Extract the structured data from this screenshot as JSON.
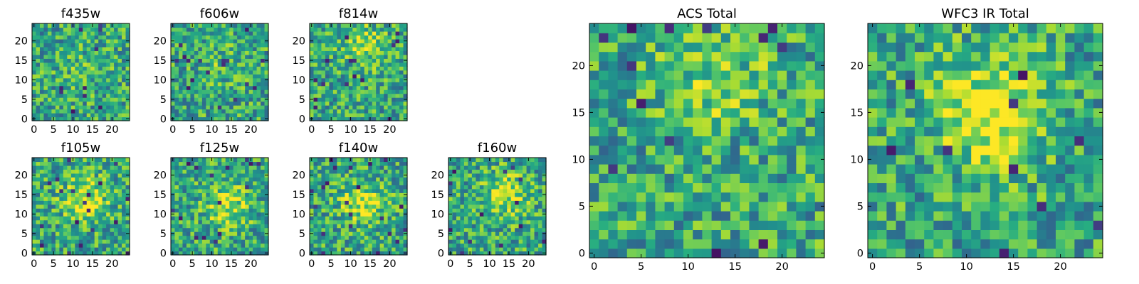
{
  "chart_data": [
    {
      "type": "heatmap",
      "title": "f435w",
      "colormap": "viridis",
      "grid_size": 25,
      "seed": 11,
      "blob": [
        13,
        13,
        0.1
      ],
      "xticks": [
        0,
        5,
        10,
        15,
        20
      ],
      "yticks": [
        0,
        5,
        10,
        15,
        20
      ],
      "xlim": [
        0,
        25
      ],
      "ylim": [
        0,
        25
      ]
    },
    {
      "type": "heatmap",
      "title": "f606w",
      "colormap": "viridis",
      "grid_size": 25,
      "seed": 23,
      "blob": [
        13,
        14,
        0.1
      ],
      "xticks": [
        0,
        5,
        10,
        15,
        20
      ],
      "yticks": [
        0,
        5,
        10,
        15,
        20
      ],
      "xlim": [
        0,
        25
      ],
      "ylim": [
        0,
        25
      ]
    },
    {
      "type": "heatmap",
      "title": "f814w",
      "colormap": "viridis",
      "grid_size": 25,
      "seed": 37,
      "blob": [
        13,
        19,
        0.25
      ],
      "xticks": [
        0,
        5,
        10,
        15,
        20
      ],
      "yticks": [
        0,
        5,
        10,
        15,
        20
      ],
      "xlim": [
        0,
        25
      ],
      "ylim": [
        0,
        25
      ]
    },
    {
      "type": "heatmap",
      "title": "f105w",
      "colormap": "viridis",
      "grid_size": 25,
      "seed": 41,
      "blob": [
        13,
        14,
        0.35
      ],
      "xticks": [
        0,
        5,
        10,
        15,
        20
      ],
      "yticks": [
        0,
        5,
        10,
        15,
        20
      ],
      "xlim": [
        0,
        25
      ],
      "ylim": [
        0,
        25
      ]
    },
    {
      "type": "heatmap",
      "title": "f125w",
      "colormap": "viridis",
      "grid_size": 25,
      "seed": 53,
      "blob": [
        14,
        12,
        0.3
      ],
      "xticks": [
        0,
        5,
        10,
        15,
        20
      ],
      "yticks": [
        0,
        5,
        10,
        15,
        20
      ],
      "xlim": [
        0,
        25
      ],
      "ylim": [
        0,
        25
      ]
    },
    {
      "type": "heatmap",
      "title": "f140w",
      "colormap": "viridis",
      "grid_size": 25,
      "seed": 67,
      "blob": [
        13,
        13,
        0.3
      ],
      "xticks": [
        0,
        5,
        10,
        15,
        20
      ],
      "yticks": [
        0,
        5,
        10,
        15,
        20
      ],
      "xlim": [
        0,
        25
      ],
      "ylim": [
        0,
        25
      ]
    },
    {
      "type": "heatmap",
      "title": "f160w",
      "colormap": "viridis",
      "grid_size": 25,
      "seed": 79,
      "blob": [
        14,
        15,
        0.3
      ],
      "xticks": [
        0,
        5,
        10,
        15,
        20
      ],
      "yticks": [
        0,
        5,
        10,
        15,
        20
      ],
      "xlim": [
        0,
        25
      ],
      "ylim": [
        0,
        25
      ]
    },
    {
      "type": "heatmap",
      "title": "ACS Total",
      "colormap": "viridis",
      "grid_size": 25,
      "seed": 97,
      "blob": [
        13,
        19,
        0.2
      ],
      "xticks": [
        0,
        5,
        10,
        15,
        20
      ],
      "yticks": [
        0,
        5,
        10,
        15,
        20
      ],
      "xlim": [
        0,
        25
      ],
      "ylim": [
        0,
        25
      ]
    },
    {
      "type": "heatmap",
      "title": "WFC3 IR Total",
      "colormap": "viridis",
      "grid_size": 25,
      "seed": 131,
      "blob": [
        13,
        15,
        0.45
      ],
      "xticks": [
        0,
        5,
        10,
        15,
        20
      ],
      "yticks": [
        0,
        5,
        10,
        15,
        20
      ],
      "xlim": [
        0,
        25
      ],
      "ylim": [
        0,
        25
      ]
    }
  ]
}
